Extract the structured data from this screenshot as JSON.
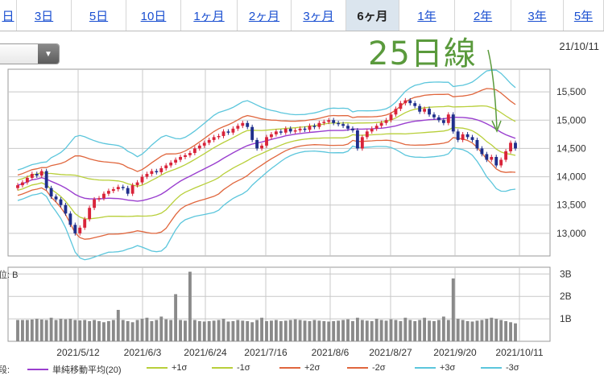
{
  "tabs": [
    "日",
    "3日",
    "5日",
    "10日",
    "1ヶ月",
    "2ヶ月",
    "3ヶ月",
    "6ヶ月",
    "1年",
    "2年",
    "3年",
    "5年"
  ],
  "active_tab": "6ヶ月",
  "date_label": "21/10/11",
  "annotation": "25日線",
  "volume_label": "位: B",
  "legend_prefix": "段:",
  "colors": {
    "up": "#d9243a",
    "down": "#1f2f8c",
    "sma": "#9a3fcf",
    "s1": "#b8cf3a",
    "s2": "#e0663d",
    "s3": "#5cc6dc",
    "volume": "#8a8a8a",
    "annotation": "#5a9a3c"
  },
  "chart_data": {
    "type": "candlestick",
    "price_axis": {
      "ylim": [
        12600,
        15900
      ],
      "ticks": [
        13000,
        13500,
        14000,
        14500,
        15000,
        15500
      ],
      "tick_labels": [
        "13,000",
        "13,500",
        "14,000",
        "14,500",
        "15,000",
        "15,500"
      ]
    },
    "volume_axis": {
      "ylim": [
        0,
        3.3
      ],
      "ticks": [
        1,
        2,
        3
      ],
      "tick_labels": [
        "1B",
        "2B",
        "3B"
      ]
    },
    "x_labels": [
      "2021/5/12",
      "2021/6/3",
      "2021/6/24",
      "2021/7/16",
      "2021/8/6",
      "2021/8/27",
      "2021/9/20",
      "2021/10/11"
    ],
    "close": [
      13850,
      13900,
      13980,
      14050,
      14020,
      14100,
      13800,
      13650,
      13600,
      13500,
      13350,
      13150,
      13000,
      13100,
      13250,
      13450,
      13600,
      13620,
      13700,
      13750,
      13780,
      13820,
      13800,
      13700,
      13850,
      13900,
      14000,
      14050,
      14100,
      14080,
      14150,
      14200,
      14250,
      14300,
      14350,
      14380,
      14420,
      14500,
      14550,
      14600,
      14650,
      14700,
      14720,
      14800,
      14780,
      14850,
      14900,
      14950,
      14880,
      14650,
      14500,
      14550,
      14700,
      14750,
      14800,
      14780,
      14850,
      14800,
      14820,
      14850,
      14830,
      14900,
      14880,
      14950,
      14970,
      15000,
      14950,
      14930,
      14900,
      14850,
      14820,
      14500,
      14700,
      14800,
      14850,
      14900,
      14950,
      15000,
      15100,
      15200,
      15300,
      15350,
      15300,
      15250,
      15150,
      15200,
      15100,
      15050,
      15000,
      14950,
      15100,
      14800,
      14650,
      14750,
      14700,
      14650,
      14500,
      14400,
      14300,
      14350,
      14200,
      14300,
      14450,
      14600,
      14500
    ],
    "open": [
      13800,
      13850,
      13900,
      13980,
      14050,
      14020,
      14100,
      13800,
      13650,
      13600,
      13500,
      13350,
      13150,
      13000,
      13100,
      13250,
      13450,
      13600,
      13620,
      13700,
      13750,
      13780,
      13820,
      13800,
      13700,
      13850,
      13900,
      14000,
      14050,
      14100,
      14080,
      14150,
      14200,
      14250,
      14300,
      14350,
      14380,
      14420,
      14500,
      14550,
      14600,
      14650,
      14700,
      14720,
      14800,
      14780,
      14850,
      14900,
      14950,
      14880,
      14650,
      14500,
      14550,
      14700,
      14750,
      14800,
      14780,
      14850,
      14800,
      14820,
      14850,
      14830,
      14900,
      14880,
      14950,
      14970,
      15000,
      14950,
      14930,
      14900,
      14850,
      14820,
      14500,
      14700,
      14800,
      14850,
      14900,
      14950,
      15000,
      15100,
      15200,
      15300,
      15350,
      15300,
      15250,
      15150,
      15200,
      15100,
      15050,
      15000,
      14950,
      15100,
      14800,
      14650,
      14750,
      14700,
      14650,
      14500,
      14400,
      14300,
      14350,
      14200,
      14300,
      14450,
      14600
    ],
    "volume": [
      0.95,
      0.95,
      0.95,
      0.97,
      1.0,
      0.97,
      0.95,
      1.05,
      0.95,
      1.0,
      0.98,
      1.0,
      0.95,
      0.93,
      0.95,
      0.9,
      0.95,
      0.9,
      0.85,
      0.9,
      0.95,
      1.4,
      0.95,
      0.9,
      0.85,
      0.95,
      1.0,
      1.05,
      0.9,
      0.95,
      1.1,
      0.98,
      0.95,
      2.1,
      0.95,
      0.92,
      3.1,
      0.95,
      0.9,
      0.88,
      0.9,
      0.92,
      0.95,
      1.0,
      0.88,
      0.9,
      0.95,
      0.92,
      0.9,
      0.85,
      0.95,
      1.05,
      0.9,
      0.92,
      0.95,
      0.9,
      0.92,
      0.95,
      0.98,
      0.95,
      0.92,
      0.9,
      0.95,
      0.92,
      0.9,
      0.88,
      0.9,
      0.92,
      0.95,
      0.98,
      0.9,
      1.05,
      0.95,
      0.92,
      0.9,
      1.0,
      0.95,
      0.92,
      0.98,
      0.95,
      0.9,
      1.05,
      0.95,
      0.9,
      0.95,
      1.05,
      0.92,
      0.9,
      0.95,
      1.1,
      0.95,
      2.8,
      1.0,
      0.95,
      0.9,
      0.88,
      0.92,
      0.95,
      1.0,
      1.05,
      1.0,
      0.95,
      0.9,
      0.85,
      0.8
    ],
    "series": [
      {
        "name": "単純移動平均(20)",
        "color": "#9a3fcf"
      },
      {
        "name": "+1σ",
        "color": "#b8cf3a"
      },
      {
        "name": "-1σ",
        "color": "#b8cf3a"
      },
      {
        "name": "+2σ",
        "color": "#e0663d"
      },
      {
        "name": "-2σ",
        "color": "#e0663d"
      },
      {
        "name": "+3σ",
        "color": "#5cc6dc"
      },
      {
        "name": "-3σ",
        "color": "#5cc6dc"
      }
    ],
    "grid": true
  }
}
